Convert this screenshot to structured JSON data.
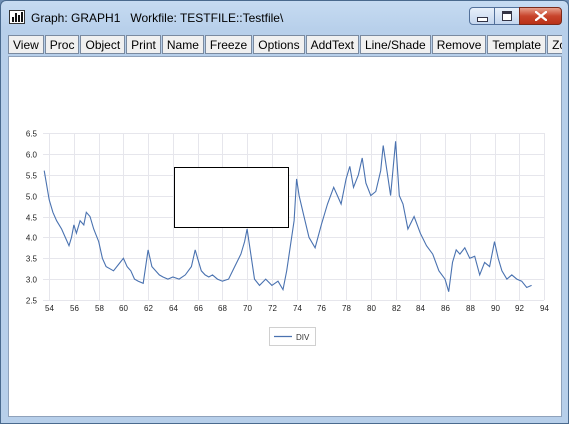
{
  "window": {
    "title": "Graph: GRAPH1   Workfile: TESTFILE::Testfile\\"
  },
  "toolbar": {
    "buttons": [
      "View",
      "Proc",
      "Object",
      "Print",
      "Name",
      "Freeze",
      "Options",
      "AddText",
      "Line/Shade",
      "Remove",
      "Template",
      "Zoo"
    ]
  },
  "chart_data": {
    "type": "line",
    "ylim": [
      2.5,
      6.5
    ],
    "xlim": [
      53.5,
      94
    ],
    "yticks": [
      "2.5",
      "3.0",
      "3.5",
      "4.0",
      "4.5",
      "5.0",
      "5.5",
      "6.0",
      "6.5"
    ],
    "xticks": [
      "54",
      "56",
      "58",
      "60",
      "62",
      "64",
      "66",
      "68",
      "70",
      "72",
      "74",
      "76",
      "78",
      "80",
      "82",
      "84",
      "86",
      "88",
      "90",
      "92",
      "94"
    ],
    "series": [
      {
        "name": "DIV",
        "color": "#4a72b0",
        "x": [
          53.6,
          54.0,
          54.3,
          54.6,
          55.0,
          55.3,
          55.6,
          55.8,
          56.0,
          56.2,
          56.5,
          56.8,
          57.0,
          57.3,
          57.6,
          58.0,
          58.3,
          58.6,
          58.9,
          59.2,
          59.6,
          60.0,
          60.3,
          60.6,
          60.9,
          61.2,
          61.6,
          62.0,
          62.3,
          62.6,
          62.9,
          63.2,
          63.6,
          64.0,
          64.5,
          65.0,
          65.5,
          65.8,
          66.0,
          66.3,
          66.6,
          66.9,
          67.2,
          67.6,
          68.0,
          68.5,
          69.0,
          69.5,
          69.8,
          70.0,
          70.3,
          70.6,
          71.0,
          71.5,
          72.0,
          72.5,
          72.9,
          73.2,
          73.5,
          73.8,
          74.0,
          74.2,
          74.6,
          75.0,
          75.5,
          76.0,
          76.5,
          77.0,
          77.3,
          77.6,
          78.0,
          78.3,
          78.6,
          79.0,
          79.3,
          79.6,
          80.0,
          80.4,
          80.8,
          81.0,
          81.3,
          81.6,
          82.0,
          82.3,
          82.6,
          83.0,
          83.5,
          84.0,
          84.5,
          85.0,
          85.5,
          86.0,
          86.3,
          86.6,
          86.9,
          87.2,
          87.6,
          88.0,
          88.4,
          88.8,
          89.2,
          89.6,
          90.0,
          90.3,
          90.6,
          91.0,
          91.4,
          91.8,
          92.2,
          92.6,
          93.0
        ],
        "y": [
          5.6,
          4.9,
          4.6,
          4.4,
          4.2,
          4.0,
          3.8,
          4.0,
          4.3,
          4.1,
          4.4,
          4.3,
          4.6,
          4.5,
          4.2,
          3.9,
          3.5,
          3.3,
          3.25,
          3.2,
          3.35,
          3.5,
          3.3,
          3.2,
          3.0,
          2.95,
          2.9,
          3.7,
          3.3,
          3.2,
          3.1,
          3.05,
          3.0,
          3.05,
          3.0,
          3.1,
          3.3,
          3.7,
          3.5,
          3.2,
          3.1,
          3.05,
          3.1,
          3.0,
          2.95,
          3.0,
          3.3,
          3.6,
          3.9,
          4.2,
          3.6,
          3.0,
          2.85,
          3.0,
          2.85,
          2.95,
          2.75,
          3.2,
          3.8,
          4.4,
          5.4,
          5.0,
          4.5,
          4.0,
          3.75,
          4.3,
          4.8,
          5.2,
          5.0,
          4.8,
          5.4,
          5.7,
          5.2,
          5.5,
          5.9,
          5.3,
          5.0,
          5.1,
          5.6,
          6.2,
          5.6,
          5.0,
          6.3,
          5.0,
          4.8,
          4.2,
          4.5,
          4.1,
          3.8,
          3.6,
          3.2,
          3.0,
          2.7,
          3.4,
          3.7,
          3.6,
          3.75,
          3.5,
          3.55,
          3.1,
          3.4,
          3.3,
          3.9,
          3.5,
          3.2,
          3.0,
          3.1,
          3.0,
          2.95,
          2.8,
          2.85
        ]
      }
    ],
    "annotations": [
      {
        "type": "rectangle",
        "empty": true
      }
    ]
  }
}
